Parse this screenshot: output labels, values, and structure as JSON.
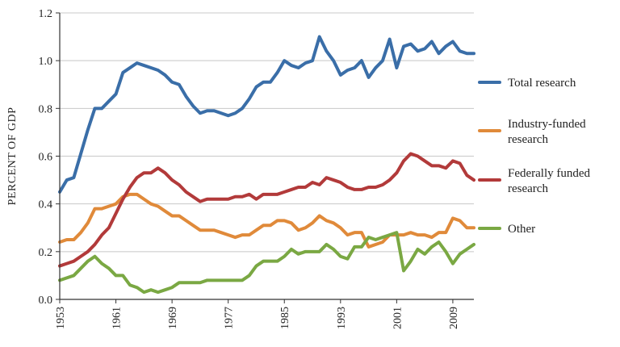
{
  "chart_data": {
    "type": "line",
    "title": "",
    "xlabel": "",
    "ylabel": "PERCENT OF GDP",
    "xlim": [
      1953,
      2012
    ],
    "ylim": [
      0.0,
      1.2
    ],
    "x_ticks": [
      "1953",
      "1961",
      "1969",
      "1977",
      "1985",
      "1993",
      "2001",
      "2009"
    ],
    "y_ticks": [
      "0.0",
      "0.2",
      "0.4",
      "0.6",
      "0.8",
      "1.0",
      "1.2"
    ],
    "grid": "horizontal",
    "legend_position": "right",
    "x": [
      1953,
      1954,
      1955,
      1956,
      1957,
      1958,
      1959,
      1960,
      1961,
      1962,
      1963,
      1964,
      1965,
      1966,
      1967,
      1968,
      1969,
      1970,
      1971,
      1972,
      1973,
      1974,
      1975,
      1976,
      1977,
      1978,
      1979,
      1980,
      1981,
      1982,
      1983,
      1984,
      1985,
      1986,
      1987,
      1988,
      1989,
      1990,
      1991,
      1992,
      1993,
      1994,
      1995,
      1996,
      1997,
      1998,
      1999,
      2000,
      2001,
      2002,
      2003,
      2004,
      2005,
      2006,
      2007,
      2008,
      2009,
      2010,
      2011,
      2012
    ],
    "series": [
      {
        "name": "Total research",
        "label_lines": [
          "Total research"
        ],
        "color": "#3a6ea8",
        "values": [
          0.45,
          0.5,
          0.51,
          0.61,
          0.71,
          0.8,
          0.8,
          0.83,
          0.86,
          0.95,
          0.97,
          0.99,
          0.98,
          0.97,
          0.96,
          0.94,
          0.91,
          0.9,
          0.85,
          0.81,
          0.78,
          0.79,
          0.79,
          0.78,
          0.77,
          0.78,
          0.8,
          0.84,
          0.89,
          0.91,
          0.91,
          0.95,
          1.0,
          0.98,
          0.97,
          0.99,
          1.0,
          1.1,
          1.04,
          1.0,
          0.94,
          0.96,
          0.97,
          1.0,
          0.93,
          0.97,
          1.0,
          1.09,
          0.97,
          1.06,
          1.07,
          1.04,
          1.05,
          1.08,
          1.03,
          1.06,
          1.08,
          1.04,
          1.03,
          1.03
        ]
      },
      {
        "name": "Industry-funded research",
        "label_lines": [
          "Industry-funded",
          "research"
        ],
        "color": "#e08a3a",
        "values": [
          0.24,
          0.25,
          0.25,
          0.28,
          0.32,
          0.38,
          0.38,
          0.39,
          0.4,
          0.43,
          0.44,
          0.44,
          0.42,
          0.4,
          0.39,
          0.37,
          0.35,
          0.35,
          0.33,
          0.31,
          0.29,
          0.29,
          0.29,
          0.28,
          0.27,
          0.26,
          0.27,
          0.27,
          0.29,
          0.31,
          0.31,
          0.33,
          0.33,
          0.32,
          0.29,
          0.3,
          0.32,
          0.35,
          0.33,
          0.32,
          0.3,
          0.27,
          0.28,
          0.28,
          0.22,
          0.23,
          0.24,
          0.27,
          0.27,
          0.27,
          0.28,
          0.27,
          0.27,
          0.26,
          0.28,
          0.28,
          0.34,
          0.33,
          0.3,
          0.3
        ]
      },
      {
        "name": "Federally funded research",
        "label_lines": [
          "Federally funded",
          "research"
        ],
        "color": "#b23a3a",
        "values": [
          0.14,
          0.15,
          0.16,
          0.18,
          0.2,
          0.23,
          0.27,
          0.3,
          0.36,
          0.42,
          0.47,
          0.51,
          0.53,
          0.53,
          0.55,
          0.53,
          0.5,
          0.48,
          0.45,
          0.43,
          0.41,
          0.42,
          0.42,
          0.42,
          0.42,
          0.43,
          0.43,
          0.44,
          0.42,
          0.44,
          0.44,
          0.44,
          0.45,
          0.46,
          0.47,
          0.47,
          0.49,
          0.48,
          0.51,
          0.5,
          0.49,
          0.47,
          0.46,
          0.46,
          0.47,
          0.47,
          0.48,
          0.5,
          0.53,
          0.58,
          0.61,
          0.6,
          0.58,
          0.56,
          0.56,
          0.55,
          0.58,
          0.57,
          0.52,
          0.5
        ]
      },
      {
        "name": "Other",
        "label_lines": [
          "Other"
        ],
        "color": "#7aa843",
        "values": [
          0.08,
          0.09,
          0.1,
          0.13,
          0.16,
          0.18,
          0.15,
          0.13,
          0.1,
          0.1,
          0.06,
          0.05,
          0.03,
          0.04,
          0.03,
          0.04,
          0.05,
          0.07,
          0.07,
          0.07,
          0.07,
          0.08,
          0.08,
          0.08,
          0.08,
          0.08,
          0.08,
          0.1,
          0.14,
          0.16,
          0.16,
          0.16,
          0.18,
          0.21,
          0.19,
          0.2,
          0.2,
          0.2,
          0.23,
          0.21,
          0.18,
          0.17,
          0.22,
          0.22,
          0.26,
          0.25,
          0.26,
          0.27,
          0.28,
          0.12,
          0.16,
          0.21,
          0.19,
          0.22,
          0.24,
          0.2,
          0.15,
          0.19,
          0.21,
          0.23
        ]
      }
    ]
  }
}
